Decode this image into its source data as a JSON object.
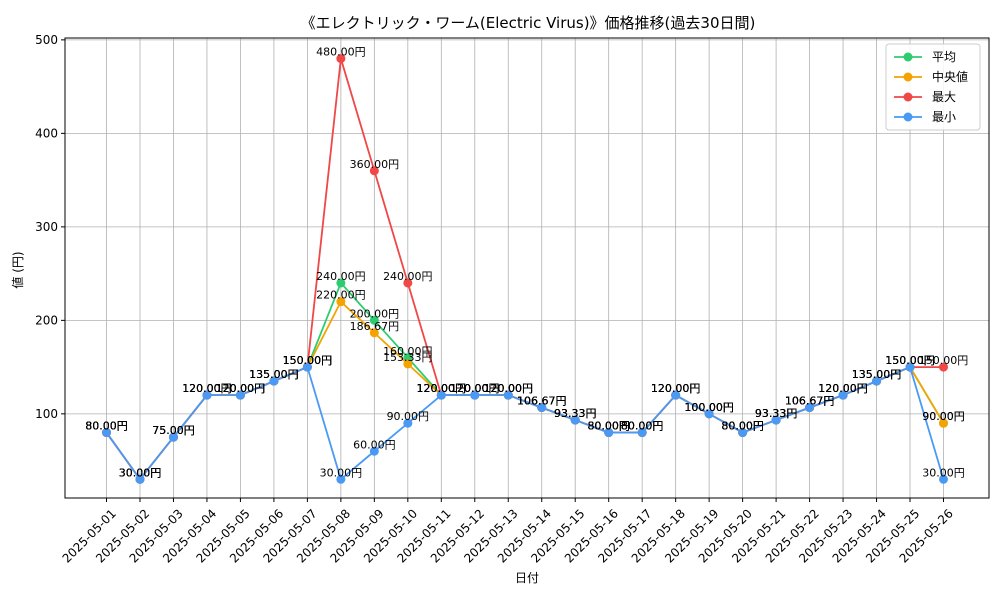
{
  "chart_data": {
    "type": "line",
    "title": "《エレクトリック・ワーム(Electric Virus)》価格推移(過去30日間)",
    "xlabel": "日付",
    "ylabel": "値 (円)",
    "ylim": [
      10,
      502
    ],
    "yticks": [
      100,
      200,
      300,
      400,
      500
    ],
    "grid": true,
    "legend_position": "top-right",
    "label_suffix": "円",
    "categories": [
      "2025-05-01",
      "2025-05-02",
      "2025-05-03",
      "2025-05-04",
      "2025-05-05",
      "2025-05-06",
      "2025-05-07",
      "2025-05-08",
      "2025-05-09",
      "2025-05-10",
      "2025-05-11",
      "2025-05-12",
      "2025-05-13",
      "2025-05-14",
      "2025-05-15",
      "2025-05-16",
      "2025-05-17",
      "2025-05-18",
      "2025-05-19",
      "2025-05-20",
      "2025-05-21",
      "2025-05-22",
      "2025-05-23",
      "2025-05-24",
      "2025-05-25",
      "2025-05-26"
    ],
    "series": [
      {
        "name": "平均",
        "color": "#2ecc71",
        "values": [
          80,
          30,
          75,
          120,
          120,
          135,
          150,
          240,
          200,
          160,
          120,
          120,
          120,
          106.67,
          93.33,
          80,
          80,
          120,
          100,
          80,
          93.33,
          106.67,
          120,
          135,
          150,
          90
        ]
      },
      {
        "name": "中央値",
        "color": "#f5a300",
        "values": [
          80,
          30,
          75,
          120,
          120,
          135,
          150,
          220,
          186.67,
          153.33,
          120,
          120,
          120,
          106.67,
          93.33,
          80,
          80,
          120,
          100,
          80,
          93.33,
          106.67,
          120,
          135,
          150,
          90
        ]
      },
      {
        "name": "最大",
        "color": "#f04747",
        "values": [
          80,
          30,
          75,
          120,
          120,
          135,
          150,
          480,
          360,
          240,
          120,
          120,
          120,
          106.67,
          93.33,
          80,
          80,
          120,
          100,
          80,
          93.33,
          106.67,
          120,
          135,
          150,
          150
        ]
      },
      {
        "name": "最小",
        "color": "#4a9af5",
        "values": [
          80,
          30,
          75,
          120,
          120,
          135,
          150,
          30,
          60,
          90,
          120,
          120,
          120,
          106.67,
          93.33,
          80,
          80,
          120,
          100,
          80,
          93.33,
          106.67,
          120,
          135,
          150,
          30
        ]
      }
    ]
  }
}
